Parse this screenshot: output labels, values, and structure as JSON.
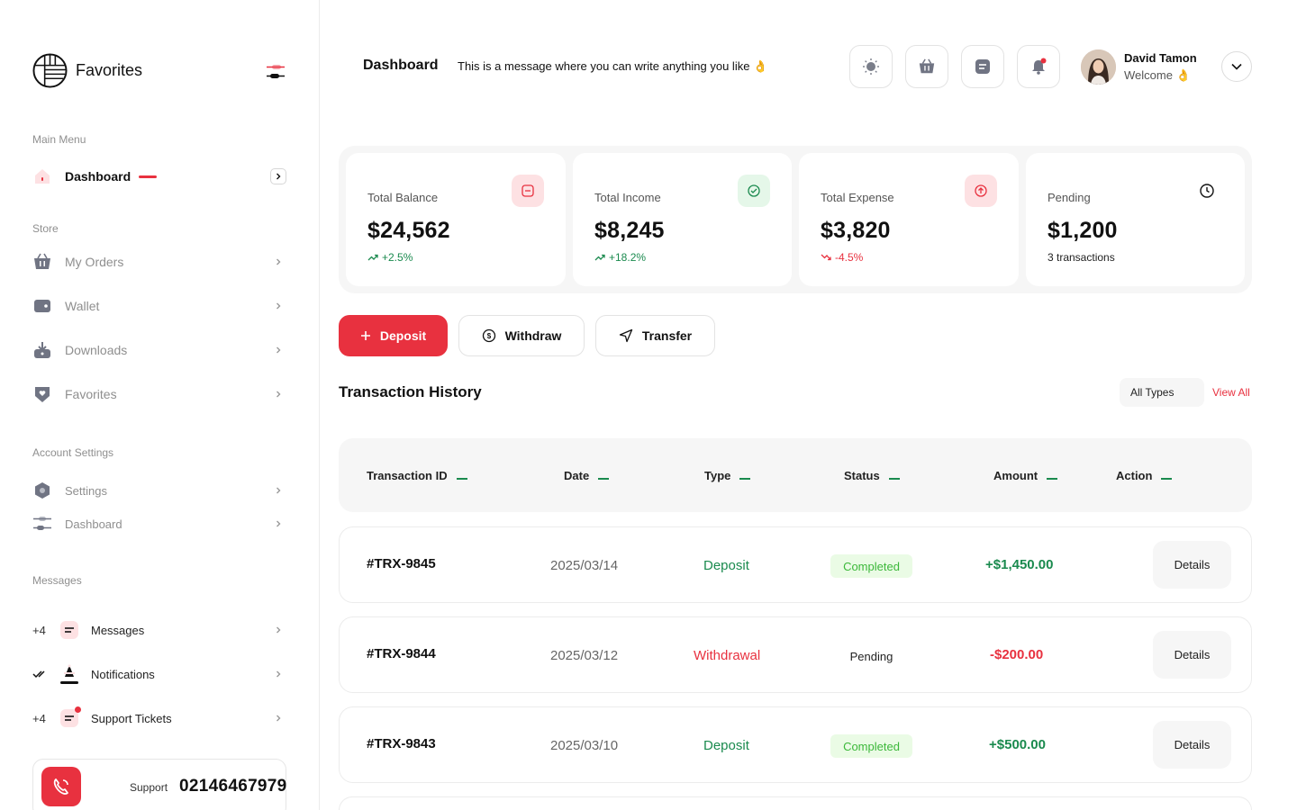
{
  "brand": {
    "name": "Favorites"
  },
  "sidebar": {
    "main_menu_label": "Main Menu",
    "dashboard_label": "Dashboard",
    "store_label": "Store",
    "store_items": [
      {
        "label": "My Orders",
        "icon": "basket-icon"
      },
      {
        "label": "Wallet",
        "icon": "wallet-icon"
      },
      {
        "label": "Downloads",
        "icon": "download-icon"
      },
      {
        "label": "Favorites",
        "icon": "heart-shield-icon"
      }
    ],
    "account_label": "Account Settings",
    "account_items": [
      {
        "label": "Settings",
        "icon": "hexagon-settings-icon"
      },
      {
        "label": "Dashboard",
        "icon": "sliders-icon"
      }
    ],
    "messages_label": "Messages",
    "message_items": [
      {
        "prefix": "+4",
        "label": "Messages",
        "icon": "message-icon"
      },
      {
        "prefix": "",
        "label": "Notifications",
        "icon": "bell-icon"
      },
      {
        "prefix": "+4",
        "label": "Support Tickets",
        "icon": "ticket-icon"
      }
    ],
    "support": {
      "label": "Support",
      "number": "02146467979"
    }
  },
  "header": {
    "title": "Dashboard",
    "message": "This is a message where you can write anything you like 👌",
    "user_name": "David Tamon",
    "user_welcome": "Welcome 👌"
  },
  "stats": [
    {
      "label": "Total Balance",
      "value": "$24,562",
      "change": "+2.5%",
      "trend": "up"
    },
    {
      "label": "Total Income",
      "value": "$8,245",
      "change": "+18.2%",
      "trend": "up"
    },
    {
      "label": "Total Expense",
      "value": "$3,820",
      "change": "-4.5%",
      "trend": "down"
    },
    {
      "label": "Pending",
      "value": "$1,200",
      "change": "3 transactions",
      "trend": "none"
    }
  ],
  "actions": {
    "deposit": "Deposit",
    "withdraw": "Withdraw",
    "transfer": "Transfer"
  },
  "transactions": {
    "title": "Transaction History",
    "filter": "All Types",
    "view_all": "View All",
    "columns": [
      "Transaction ID",
      "Date",
      "Type",
      "Status",
      "Amount",
      "Action"
    ],
    "rows": [
      {
        "id": "#TRX-9845",
        "date": "2025/03/14",
        "type": "Deposit",
        "status": "Completed",
        "amount": "+$1,450.00",
        "action": "Details"
      },
      {
        "id": "#TRX-9844",
        "date": "2025/03/12",
        "type": "Withdrawal",
        "status": "Pending",
        "amount": "-$200.00",
        "action": "Details"
      },
      {
        "id": "#TRX-9843",
        "date": "2025/03/10",
        "type": "Deposit",
        "status": "Completed",
        "amount": "+$500.00",
        "action": "Details"
      }
    ]
  },
  "colors": {
    "accent": "#e8313f",
    "green": "#1a8a4e",
    "completed_bg": "#eafbe5",
    "completed_text": "#3cb83a"
  }
}
